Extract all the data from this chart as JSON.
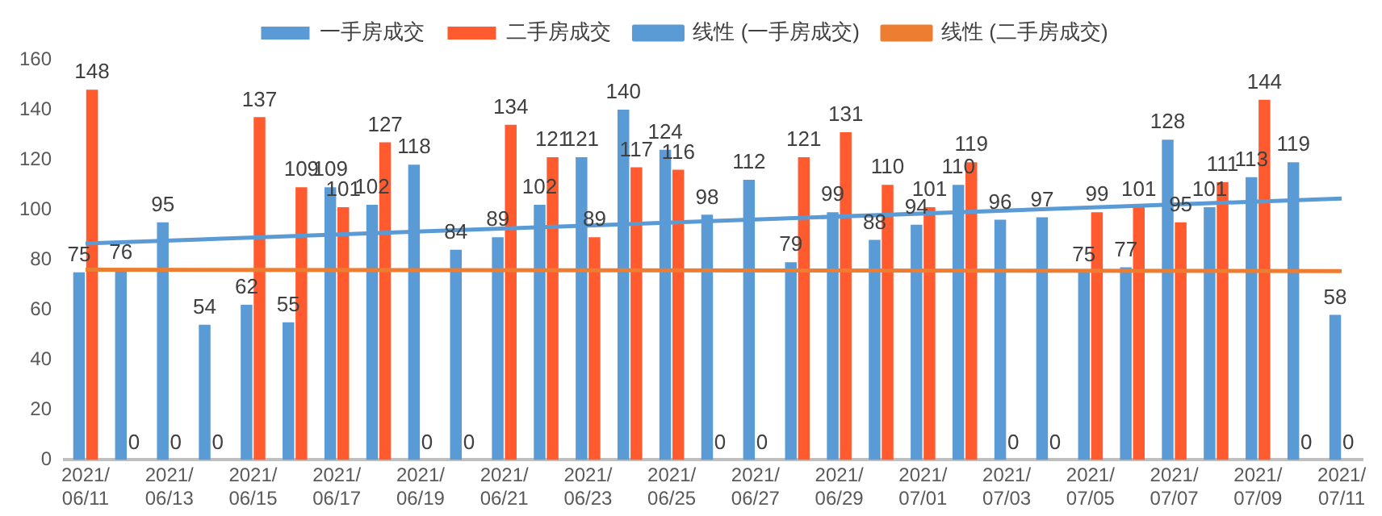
{
  "chart_data": {
    "type": "bar",
    "categories": [
      "2021/06/11",
      null,
      "2021/06/13",
      null,
      "2021/06/15",
      null,
      "2021/06/17",
      null,
      "2021/06/19",
      null,
      "2021/06/21",
      null,
      "2021/06/23",
      null,
      "2021/06/25",
      null,
      "2021/06/27",
      null,
      "2021/06/29",
      null,
      "2021/07/01",
      null,
      "2021/07/03",
      null,
      "2021/07/05",
      null,
      "2021/07/07",
      null,
      "2021/07/09",
      null,
      "2021/07/11"
    ],
    "series": [
      {
        "name": "一手房成交",
        "color": "#5b9bd5",
        "values": [
          75,
          76,
          95,
          54,
          62,
          55,
          109,
          102,
          118,
          84,
          89,
          102,
          121,
          140,
          124,
          98,
          112,
          79,
          99,
          88,
          94,
          110,
          96,
          97,
          75,
          77,
          128,
          101,
          113,
          119,
          58
        ],
        "value_labels": [
          "75",
          "76",
          "95",
          "54",
          "62",
          "55",
          "109",
          "102",
          "118",
          "84",
          "89",
          "102",
          "121",
          "140",
          "124",
          "98",
          "112",
          "79",
          "99",
          "88",
          "94",
          "110",
          "96",
          "97",
          "75",
          "77",
          "128",
          "101",
          "113",
          "119",
          "58"
        ]
      },
      {
        "name": "二手房成交",
        "color": "#ff5b2e",
        "values": [
          148,
          0,
          0,
          0,
          137,
          109,
          101,
          127,
          0,
          0,
          134,
          121,
          89,
          117,
          116,
          0,
          0,
          121,
          131,
          110,
          101,
          119,
          0,
          0,
          99,
          101,
          95,
          111,
          144,
          0,
          0
        ],
        "value_labels": [
          "148",
          "0",
          "0",
          "0",
          "137",
          "109",
          "101",
          "127",
          "0",
          "0",
          "134",
          "121",
          "89",
          "117",
          "116",
          "0",
          "0",
          "121",
          "131",
          "110",
          "101",
          "119",
          "0",
          "0",
          "99",
          "101",
          "95",
          "111",
          "144",
          "0",
          "0"
        ]
      },
      {
        "name": "线性 (一手房成交)",
        "type": "line",
        "color": "#5b9bd5",
        "x": [
          "2021/06/11",
          "2021/07/11"
        ],
        "values": [
          86.5,
          104.5
        ]
      },
      {
        "name": "线性 (二手房成交)",
        "type": "line",
        "color": "#ed7d31",
        "x": [
          "2021/06/11",
          "2021/07/11"
        ],
        "values": [
          76,
          75.5
        ]
      }
    ],
    "ylim": [
      0,
      160
    ],
    "yticks": [
      0,
      20,
      40,
      60,
      80,
      100,
      120,
      140,
      160
    ],
    "grid": false,
    "legend": "top",
    "marker": "none"
  }
}
